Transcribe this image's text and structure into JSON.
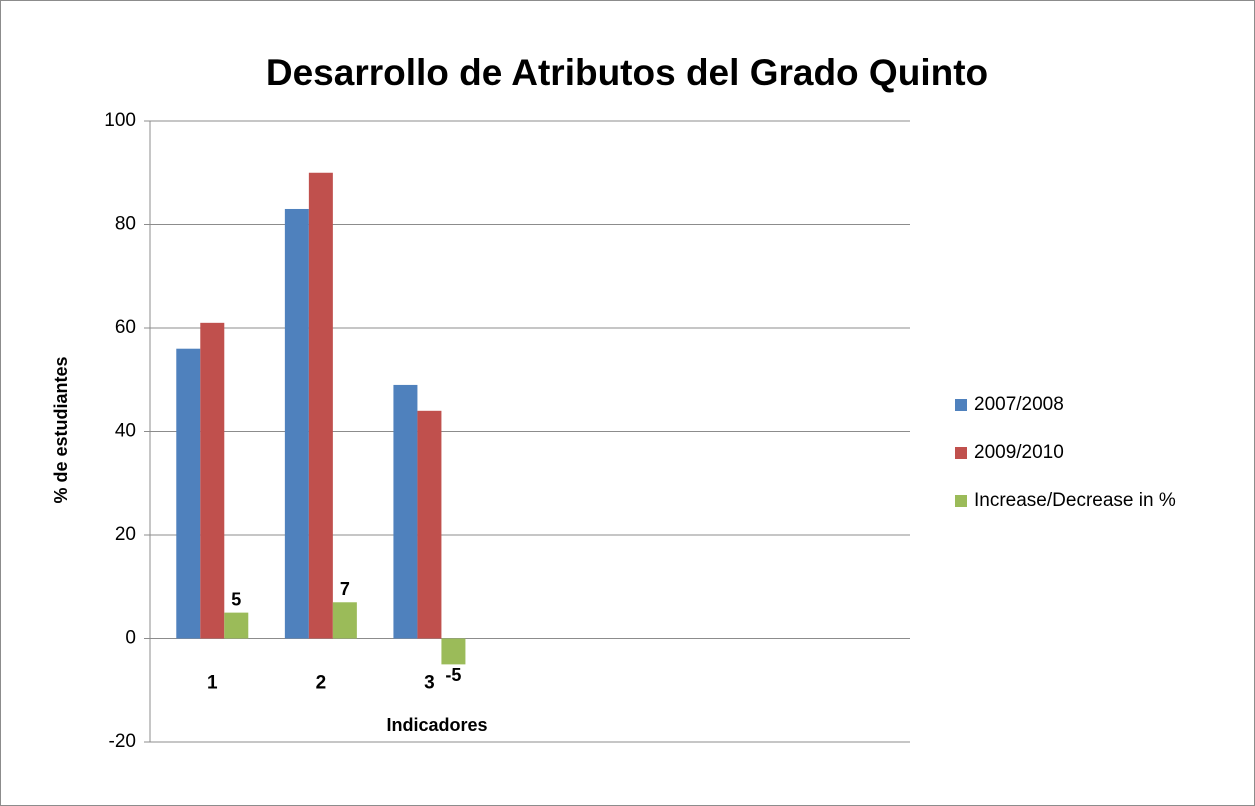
{
  "chart_data": {
    "type": "bar",
    "title": "Desarrollo de Atributos del Grado Quinto",
    "x_label": "Indicadores",
    "y_label": "% de estudiantes",
    "categories": [
      "1",
      "2",
      "3",
      null,
      null,
      null,
      null
    ],
    "series": [
      {
        "name": "2007/2008",
        "color": "#4f81bd",
        "values": [
          56,
          83,
          49,
          null,
          null,
          null,
          null
        ]
      },
      {
        "name": "2009/2010",
        "color": "#c0504d",
        "values": [
          61,
          90,
          44,
          null,
          null,
          null,
          null
        ]
      },
      {
        "name": "Increase/Decrease in %",
        "color": "#9bbb59",
        "values": [
          5,
          7,
          -5,
          null,
          null,
          null,
          null
        ],
        "data_labels": true
      }
    ],
    "ylim": [
      -20,
      100
    ],
    "yticks": [
      -20,
      0,
      20,
      40,
      60,
      80,
      100
    ],
    "grid": true,
    "legend": "right"
  }
}
